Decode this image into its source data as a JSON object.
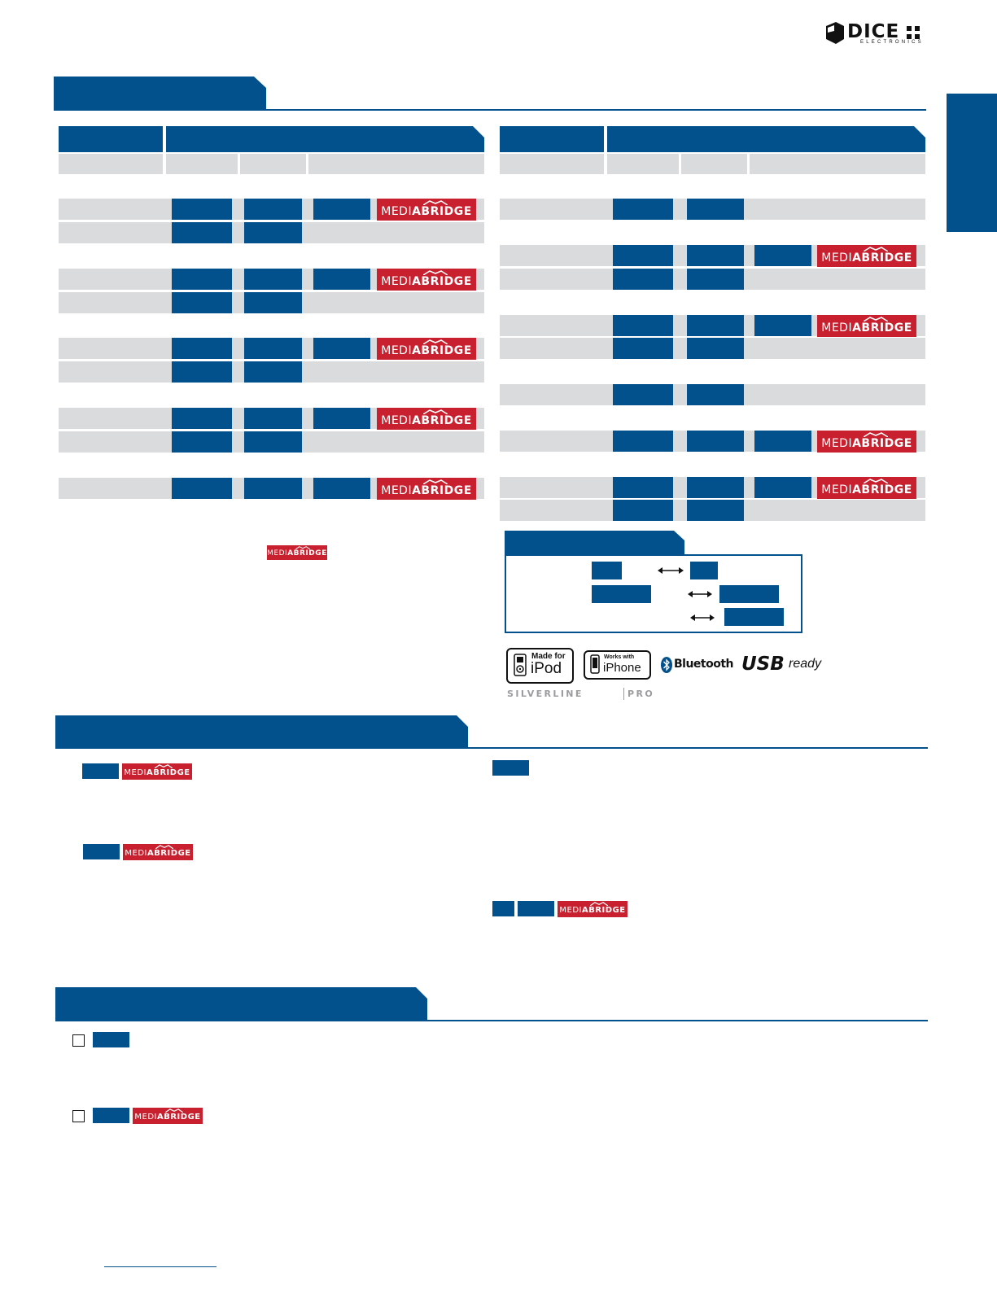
{
  "brand": {
    "name": "DICE",
    "subtitle": "ELECTRONICS"
  },
  "badges": {
    "mediabridge_light": "MEDI",
    "mediabridge_i": "A",
    "mediabridge_bold": "BRIDGE"
  },
  "logos": {
    "ipod_top": "Made for",
    "ipod_main": "iPod",
    "iphone_top": "Works with",
    "iphone_main": "iPhone",
    "bluetooth": "Bluetooth",
    "usb_main": "USB",
    "usb_sub": "ready",
    "silverline_a": "SILVERLINE",
    "silverline_b": "PRO"
  },
  "colors": {
    "primary_blue": "#02508c",
    "row_gray": "#dadbdc",
    "mediabridge_red": "#c8202e"
  }
}
